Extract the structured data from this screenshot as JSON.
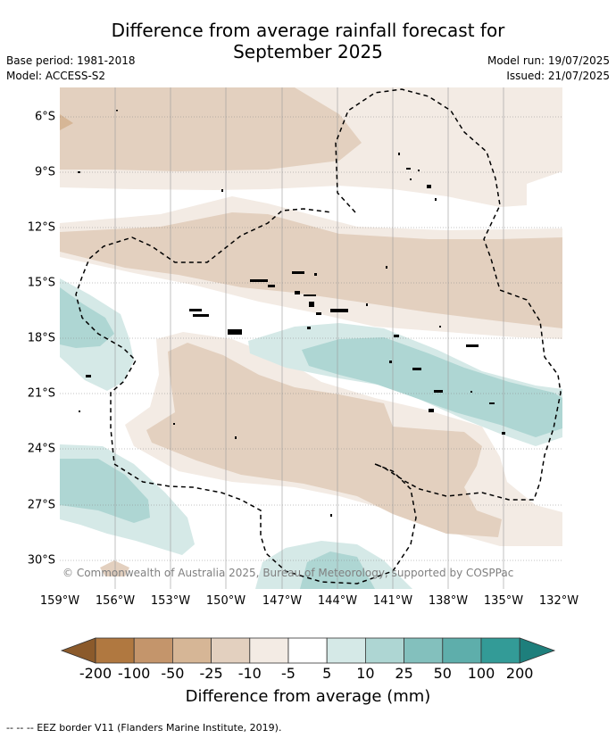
{
  "title": {
    "line1": "Difference from average rainfall forecast for",
    "line2": "September 2025"
  },
  "meta": {
    "base_period": "Base period: 1981-2018",
    "model": "Model: ACCESS-S2",
    "model_run": "Model run: 19/07/2025",
    "issued": "Issued: 21/07/2025"
  },
  "map": {
    "lat_labels": [
      "6°S",
      "9°S",
      "12°S",
      "15°S",
      "18°S",
      "21°S",
      "24°S",
      "27°S",
      "30°S"
    ],
    "lon_labels": [
      "159°W",
      "156°W",
      "153°W",
      "150°W",
      "147°W",
      "144°W",
      "141°W",
      "138°W",
      "135°W",
      "132°W"
    ],
    "copyright": "© Commonwealth of Australia 2025, Bureau of Meteorology, supported by COSPPac"
  },
  "colorbar": {
    "ticks": [
      "-200",
      "-100",
      "-50",
      "-25",
      "-10",
      "-5",
      "5",
      "10",
      "25",
      "50",
      "100",
      "200"
    ],
    "colors": [
      "#8b5a2b",
      "#b07840",
      "#c4956b",
      "#d6b696",
      "#e3d0bf",
      "#f3ebe4",
      "#ffffff",
      "#d5e9e7",
      "#aed6d3",
      "#83c0bd",
      "#5eaeab",
      "#339b97",
      "#1e7f7c"
    ],
    "title": "Difference from average (mm)"
  },
  "legend": {
    "eez": "--  --  -- EEZ border V11 (Flanders Marine Institute, 2019)."
  }
}
